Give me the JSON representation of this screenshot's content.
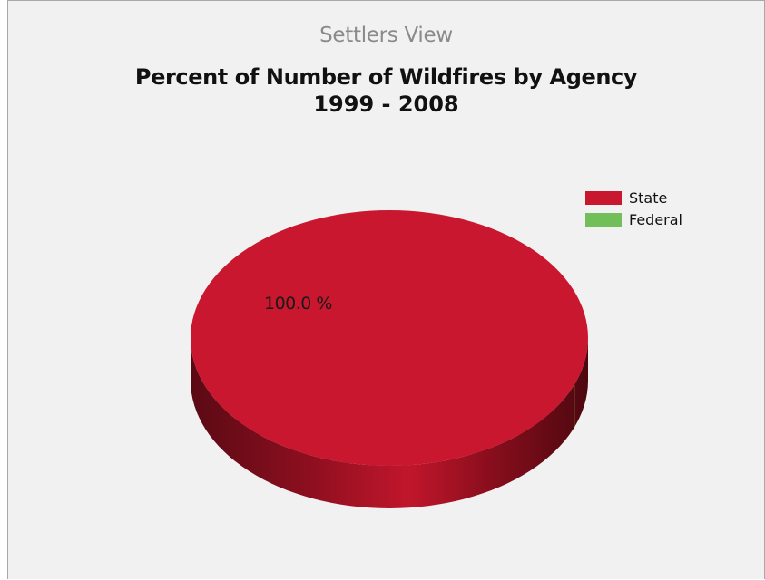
{
  "header": {
    "view_title": "Settlers View"
  },
  "chart_data": {
    "type": "pie",
    "style": "3d",
    "title": "Percent of Number of Wildfires by Agency",
    "subtitle": "1999 - 2008",
    "legend_position": "top-right",
    "categories": [
      "State",
      "Federal"
    ],
    "values": [
      100.0,
      0.0
    ],
    "data_labels": [
      "100.0 %"
    ],
    "colors": {
      "State": "#c8172e",
      "Federal": "#72bf5a"
    }
  }
}
